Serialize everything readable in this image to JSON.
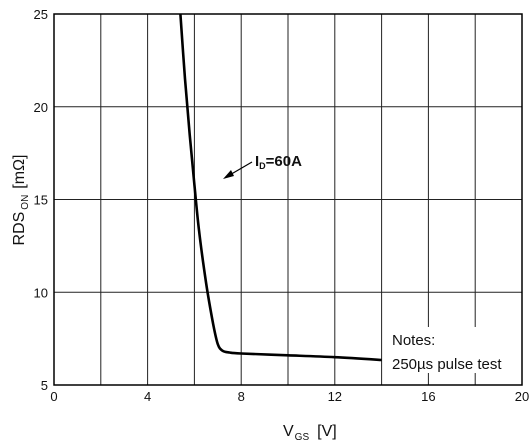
{
  "chart_data": {
    "type": "line",
    "xlabel": {
      "main": "V",
      "sub": "GS",
      "unit": "[V]"
    },
    "ylabel": {
      "main": "RDS",
      "sub": "ON",
      "unit": "[mΩ]"
    },
    "xlim": [
      0,
      20
    ],
    "ylim": [
      5,
      25
    ],
    "xticks": [
      0,
      4,
      8,
      12,
      16,
      20
    ],
    "yticks": [
      5,
      10,
      15,
      20,
      25
    ],
    "grid": true,
    "series": [
      {
        "x": [
          5.4,
          5.6,
          5.8,
          6.0,
          6.2,
          6.5,
          6.8,
          7.0,
          7.2,
          7.5,
          8.0,
          10.0,
          12.0,
          14.0
        ],
        "y": [
          25.0,
          21.5,
          18.5,
          15.8,
          13.3,
          10.5,
          8.3,
          7.2,
          6.85,
          6.75,
          6.7,
          6.6,
          6.5,
          6.35
        ]
      }
    ],
    "annotations": [
      {
        "prefix": "I",
        "sub": "D",
        "text": "=60A",
        "arrow": true
      },
      {
        "text": "Notes:"
      },
      {
        "text": "250µs pulse test"
      }
    ]
  }
}
